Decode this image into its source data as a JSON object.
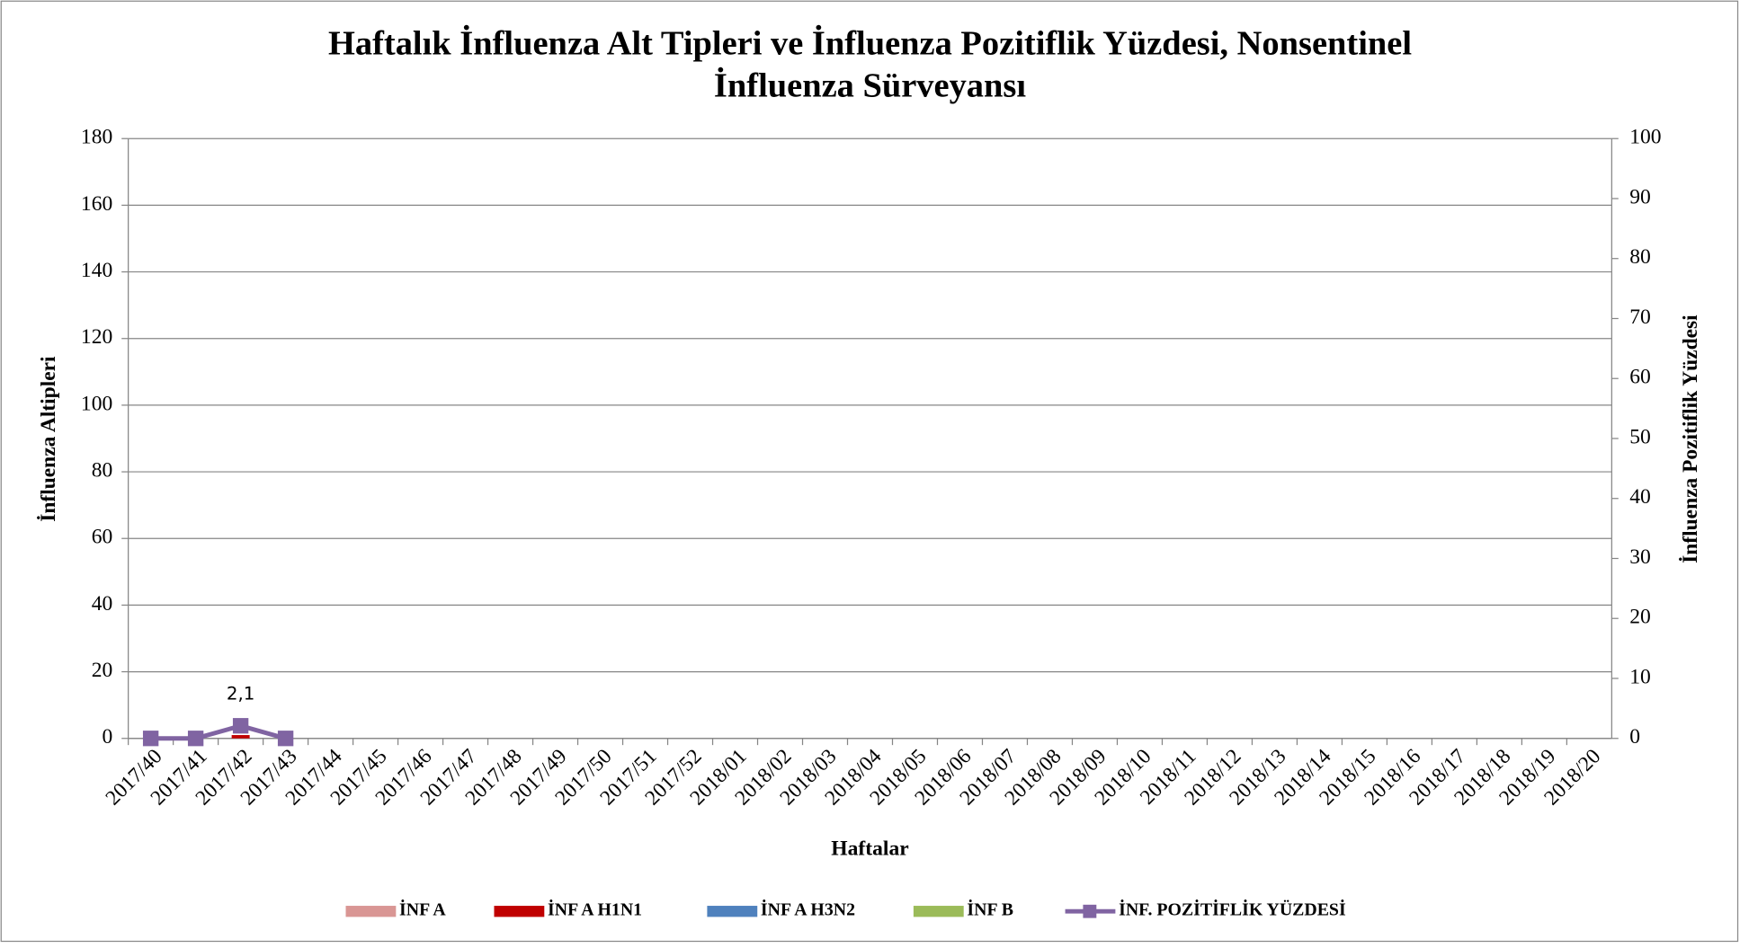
{
  "chart_data": {
    "type": "bar",
    "title": [
      "Haftalık İnfluenza Alt Tipleri ve İnfluenza Pozitiflik Yüzdesi, Nonsentinel",
      "İnfluenza Sürveyansı"
    ],
    "xlabel": "Haftalar",
    "ylabel": "İnfluenza Altipleri",
    "y2label": "İnfluenza Pozitiflik Yüzdesi",
    "categories": [
      "2017/40",
      "2017/41",
      "2017/42",
      "2017/43",
      "2017/44",
      "2017/45",
      "2017/46",
      "2017/47",
      "2017/48",
      "2017/49",
      "2017/50",
      "2017/51",
      "2017/52",
      "2018/01",
      "2018/02",
      "2018/03",
      "2018/04",
      "2018/05",
      "2018/06",
      "2018/07",
      "2018/08",
      "2018/09",
      "2018/10",
      "2018/11",
      "2018/12",
      "2018/13",
      "2018/14",
      "2018/15",
      "2018/16",
      "2018/17",
      "2018/18",
      "2018/19",
      "2018/20"
    ],
    "series": [
      {
        "name": "İNF A",
        "color": "#d99694",
        "values": [
          0,
          0,
          0,
          0,
          null,
          null,
          null,
          null,
          null,
          null,
          null,
          null,
          null,
          null,
          null,
          null,
          null,
          null,
          null,
          null,
          null,
          null,
          null,
          null,
          null,
          null,
          null,
          null,
          null,
          null,
          null,
          null,
          null
        ]
      },
      {
        "name": "İNF A H1N1",
        "color": "#c00000",
        "values": [
          0,
          0,
          1,
          0,
          null,
          null,
          null,
          null,
          null,
          null,
          null,
          null,
          null,
          null,
          null,
          null,
          null,
          null,
          null,
          null,
          null,
          null,
          null,
          null,
          null,
          null,
          null,
          null,
          null,
          null,
          null,
          null,
          null
        ]
      },
      {
        "name": "İNF A H3N2",
        "color": "#4f81bd",
        "values": [
          0,
          0,
          0,
          0,
          null,
          null,
          null,
          null,
          null,
          null,
          null,
          null,
          null,
          null,
          null,
          null,
          null,
          null,
          null,
          null,
          null,
          null,
          null,
          null,
          null,
          null,
          null,
          null,
          null,
          null,
          null,
          null,
          null
        ]
      },
      {
        "name": "İNF B",
        "color": "#9bbb59",
        "values": [
          0,
          0,
          0,
          0,
          null,
          null,
          null,
          null,
          null,
          null,
          null,
          null,
          null,
          null,
          null,
          null,
          null,
          null,
          null,
          null,
          null,
          null,
          null,
          null,
          null,
          null,
          null,
          null,
          null,
          null,
          null,
          null,
          null
        ]
      },
      {
        "name": "İNF. POZİTİFLİK YÜZDESİ",
        "color": "#8064a2",
        "type": "line",
        "axis": "y2",
        "values": [
          0,
          0,
          2.1,
          0,
          null,
          null,
          null,
          null,
          null,
          null,
          null,
          null,
          null,
          null,
          null,
          null,
          null,
          null,
          null,
          null,
          null,
          null,
          null,
          null,
          null,
          null,
          null,
          null,
          null,
          null,
          null,
          null,
          null
        ],
        "value_labels": [
          null,
          null,
          "2,1",
          null,
          null,
          null,
          null,
          null,
          null,
          null,
          null,
          null,
          null,
          null,
          null,
          null,
          null,
          null,
          null,
          null,
          null,
          null,
          null,
          null,
          null,
          null,
          null,
          null,
          null,
          null,
          null,
          null,
          null
        ]
      }
    ],
    "ylim": [
      0,
      180
    ],
    "yticks": [
      0,
      20,
      40,
      60,
      80,
      100,
      120,
      140,
      160,
      180
    ],
    "y2lim": [
      0,
      100
    ],
    "y2ticks": [
      0,
      10,
      20,
      30,
      40,
      50,
      60,
      70,
      80,
      90,
      100
    ],
    "grid": true,
    "stacked": true,
    "legend": "bottom"
  }
}
